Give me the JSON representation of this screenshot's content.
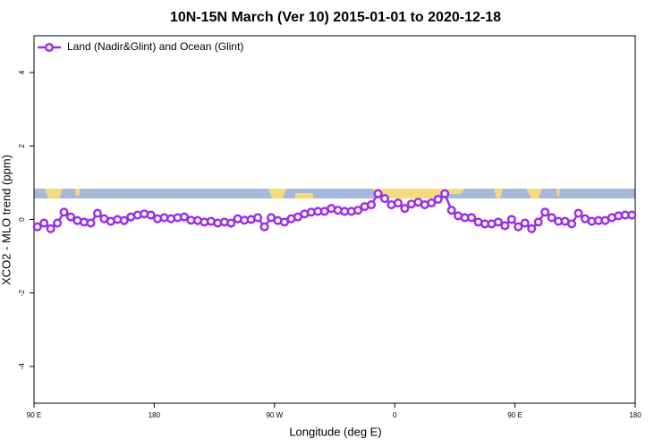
{
  "chart_data": {
    "type": "line",
    "title": "10N-15N March (Ver 10)   2015-01-01 to 2020-12-18",
    "xlabel": "Longitude (deg E)",
    "ylabel": "XCO2 - MLO trend (ppm)",
    "xlim": [
      90,
      540
    ],
    "ylim": [
      -5,
      5
    ],
    "xticks": [
      {
        "value": 90,
        "label": "90 E"
      },
      180,
      {
        "value": 270,
        "label": "90 W"
      },
      {
        "value": 360,
        "label": "0"
      },
      {
        "value": 450,
        "label": "90 E"
      },
      {
        "value": 540,
        "label": "180"
      }
    ],
    "yticks": [
      -4,
      -2,
      0,
      2,
      4
    ],
    "legend": "top-left",
    "x": [
      92.5,
      97.5,
      102.5,
      107.5,
      112.5,
      117.5,
      122.5,
      127.5,
      132.5,
      137.5,
      142.5,
      147.5,
      152.5,
      157.5,
      162.5,
      167.5,
      172.5,
      177.5,
      182.5,
      187.5,
      192.5,
      197.5,
      202.5,
      207.5,
      212.5,
      217.5,
      222.5,
      227.5,
      232.5,
      237.5,
      242.5,
      247.5,
      252.5,
      257.5,
      262.5,
      267.5,
      272.5,
      277.5,
      282.5,
      287.5,
      292.5,
      297.5,
      302.5,
      307.5,
      312.5,
      317.5,
      322.5,
      327.5,
      332.5,
      337.5,
      342.5,
      347.5,
      352.5,
      357.5,
      362.5,
      367.5,
      372.5,
      377.5,
      382.5,
      387.5,
      392.5,
      397.5,
      402.5,
      407.5,
      412.5,
      417.5,
      422.5,
      427.5,
      432.5,
      437.5,
      442.5,
      447.5,
      452.5,
      457.5,
      462.5,
      467.5,
      472.5,
      477.5,
      482.5,
      487.5,
      492.5,
      497.5,
      502.5,
      507.5,
      512.5,
      517.5,
      522.5,
      527.5,
      532.5,
      537.5
    ],
    "series": [
      {
        "name": "Land (Nadir&Glint) and Ocean (Glint)",
        "color": "#9b30e6",
        "values": [
          -0.2,
          -0.1,
          -0.25,
          -0.1,
          0.2,
          0.07,
          -0.03,
          -0.07,
          -0.1,
          0.17,
          0.02,
          -0.05,
          0,
          -0.03,
          0.07,
          0.12,
          0.15,
          0.12,
          0.02,
          0.05,
          0.02,
          0.05,
          0.07,
          -0.02,
          -0.03,
          -0.07,
          -0.05,
          -0.1,
          -0.07,
          -0.1,
          0.02,
          -0.02,
          0,
          0.05,
          -0.2,
          0.05,
          -0.03,
          -0.07,
          0.02,
          0.07,
          0.15,
          0.2,
          0.22,
          0.22,
          0.3,
          0.25,
          0.22,
          0.22,
          0.25,
          0.35,
          0.4,
          0.7,
          0.57,
          0.4,
          0.45,
          0.3,
          0.42,
          0.47,
          0.4,
          0.45,
          0.55,
          0.7,
          0.25,
          0.1,
          0.05,
          0.05,
          -0.07,
          -0.12,
          -0.12,
          -0.07,
          -0.17,
          0,
          -0.2,
          -0.1,
          -0.25,
          -0.07,
          0.2,
          0.05,
          -0.05,
          -0.05,
          -0.12,
          0.17,
          0.02,
          -0.05,
          -0.03,
          -0.03,
          0.05,
          0.1,
          0.12,
          0.12
        ]
      }
    ]
  }
}
